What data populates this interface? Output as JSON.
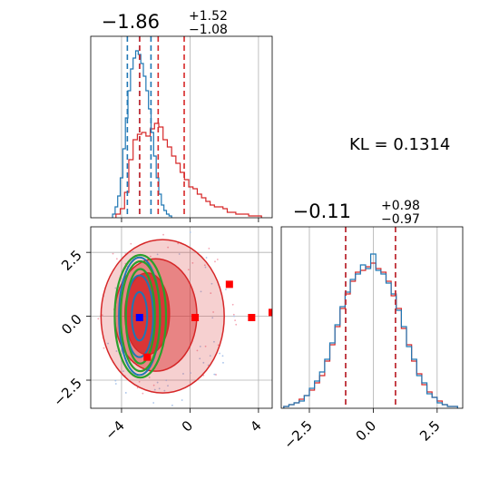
{
  "colors": {
    "red": "#d62728",
    "blue": "#1f77b4",
    "green": "#2ca02c",
    "grid": "#b0b0b0",
    "marker_blue": "#0000ff",
    "marker_red": "#ff0000"
  },
  "figure": {
    "kl_text": "KL = 0.1314"
  },
  "chart_data": [
    {
      "type": "histogram",
      "panel": "top-left",
      "title_main": "−1.86",
      "title_sup": "+1.52",
      "title_sub": "−1.08",
      "xlim": [
        -5.8,
        4.8
      ],
      "ylim": [
        0,
        1.0
      ],
      "x_ticks_shown": false,
      "red_quantiles": [
        -2.94,
        -1.86,
        -0.34
      ],
      "blue_quantiles": [
        -3.66,
        -2.95,
        -2.28
      ],
      "series": [
        {
          "name": "",
          "color": "#d62728",
          "x": [
            -4.2,
            -3.95,
            -3.7,
            -3.45,
            -3.2,
            -2.95,
            -2.7,
            -2.45,
            -2.2,
            -1.95,
            -1.7,
            -1.45,
            -1.2,
            -0.95,
            -0.7,
            -0.45,
            -0.2,
            0.05,
            0.3,
            0.55,
            0.8,
            1.05,
            1.3,
            1.55,
            1.8,
            2.05,
            2.3,
            2.55,
            2.8,
            3.05,
            3.3,
            3.55,
            3.8,
            4.05
          ],
          "values": [
            0.02,
            0.05,
            0.14,
            0.32,
            0.43,
            0.46,
            0.47,
            0.45,
            0.49,
            0.52,
            0.5,
            0.43,
            0.39,
            0.34,
            0.3,
            0.25,
            0.21,
            0.17,
            0.16,
            0.13,
            0.11,
            0.09,
            0.07,
            0.06,
            0.06,
            0.05,
            0.03,
            0.03,
            0.02,
            0.02,
            0.02,
            0.01,
            0.01,
            0.01
          ]
        },
        {
          "name": "",
          "color": "#1f77b4",
          "x": [
            -4.45,
            -4.3,
            -4.15,
            -4.0,
            -3.85,
            -3.7,
            -3.55,
            -3.4,
            -3.25,
            -3.1,
            -2.95,
            -2.8,
            -2.65,
            -2.5,
            -2.35,
            -2.2,
            -2.05,
            -1.9,
            -1.75,
            -1.6,
            -1.45,
            -1.3,
            -1.15
          ],
          "values": [
            0.02,
            0.06,
            0.12,
            0.22,
            0.38,
            0.55,
            0.7,
            0.82,
            0.88,
            0.92,
            0.9,
            0.85,
            0.78,
            0.7,
            0.6,
            0.47,
            0.34,
            0.22,
            0.13,
            0.07,
            0.04,
            0.02,
            0.01
          ]
        }
      ]
    },
    {
      "type": "contour-scatter",
      "panel": "bottom-left",
      "xlim": [
        -5.8,
        4.8
      ],
      "ylim": [
        -3.6,
        3.5
      ],
      "x_ticks": [
        -4,
        0,
        4
      ],
      "x_tick_labels": [
        "−4",
        "0",
        "4"
      ],
      "y_ticks": [
        2.5,
        0,
        -2.5
      ],
      "y_tick_labels": [
        "2.5",
        "0.0",
        "−2.5"
      ],
      "red_contours": [
        {
          "level": "outer",
          "cx": -1.6,
          "cy": 0.0,
          "rx": 3.6,
          "ry": 3.0,
          "opacity": 0.22
        },
        {
          "level": "mid",
          "cx": -2.0,
          "cy": 0.05,
          "rx": 2.4,
          "ry": 2.2,
          "opacity": 0.45
        },
        {
          "level": "inner",
          "cx": -2.5,
          "cy": 0.1,
          "rx": 1.3,
          "ry": 1.6,
          "opacity": 0.85
        }
      ],
      "blue_contours": [
        {
          "cx": -2.95,
          "cy": 0.0,
          "rx": 1.2,
          "ry": 2.3
        },
        {
          "cx": -2.95,
          "cy": 0.0,
          "rx": 0.8,
          "ry": 1.6
        },
        {
          "cx": -2.95,
          "cy": 0.0,
          "rx": 0.45,
          "ry": 0.95
        }
      ],
      "green_ellipses": [
        {
          "cx": -2.9,
          "cy": 0.0,
          "rx": 1.5,
          "ry": 2.4
        },
        {
          "cx": -2.9,
          "cy": 0.0,
          "rx": 1.15,
          "ry": 2.15
        },
        {
          "cx": -2.9,
          "cy": 0.0,
          "rx": 0.85,
          "ry": 1.85
        }
      ],
      "red_markers": [
        {
          "x": 2.3,
          "y": 1.25
        },
        {
          "x": 0.3,
          "y": -0.05
        },
        {
          "x": 3.6,
          "y": -0.05
        },
        {
          "x": 4.8,
          "y": 0.15
        },
        {
          "x": -2.5,
          "y": -1.6
        }
      ],
      "blue_marker": {
        "x": -2.95,
        "y": -0.05
      }
    },
    {
      "type": "histogram",
      "panel": "bottom-right",
      "title_main": "−0.11",
      "title_sup": "+0.98",
      "title_sub": "−0.97",
      "xlim": [
        -3.6,
        3.5
      ],
      "ylim": [
        0,
        1.0
      ],
      "x_ticks": [
        -2.5,
        0,
        2.5
      ],
      "x_tick_labels": [
        "−2.5",
        "0.0",
        "2.5"
      ],
      "red_quantiles": [
        -1.08,
        0.87
      ],
      "blue_quantiles": [
        -1.08,
        0.87
      ],
      "series": [
        {
          "name": "",
          "color": "#d62728",
          "x": [
            -3.4,
            -3.2,
            -3.0,
            -2.8,
            -2.6,
            -2.4,
            -2.2,
            -2.0,
            -1.8,
            -1.6,
            -1.4,
            -1.2,
            -1.0,
            -0.8,
            -0.6,
            -0.4,
            -0.2,
            0.0,
            0.2,
            0.4,
            0.6,
            0.8,
            1.0,
            1.2,
            1.4,
            1.6,
            1.8,
            2.0,
            2.2,
            2.4,
            2.6,
            2.8,
            3.0,
            3.2
          ],
          "values": [
            0.01,
            0.02,
            0.03,
            0.05,
            0.07,
            0.1,
            0.14,
            0.18,
            0.26,
            0.35,
            0.45,
            0.55,
            0.63,
            0.7,
            0.75,
            0.76,
            0.78,
            0.8,
            0.77,
            0.75,
            0.7,
            0.62,
            0.55,
            0.44,
            0.35,
            0.26,
            0.19,
            0.13,
            0.09,
            0.06,
            0.04,
            0.02,
            0.01,
            0.01
          ]
        },
        {
          "name": "",
          "color": "#1f77b4",
          "x": [
            -3.4,
            -3.2,
            -3.0,
            -2.8,
            -2.6,
            -2.4,
            -2.2,
            -2.0,
            -1.8,
            -1.6,
            -1.4,
            -1.2,
            -1.0,
            -0.8,
            -0.6,
            -0.4,
            -0.2,
            0.0,
            0.2,
            0.4,
            0.6,
            0.8,
            1.0,
            1.2,
            1.4,
            1.6,
            1.8,
            2.0,
            2.2,
            2.4,
            2.6,
            2.8,
            3.0,
            3.2
          ],
          "values": [
            0.01,
            0.02,
            0.03,
            0.04,
            0.07,
            0.11,
            0.15,
            0.2,
            0.27,
            0.36,
            0.46,
            0.56,
            0.64,
            0.71,
            0.74,
            0.79,
            0.77,
            0.85,
            0.76,
            0.74,
            0.69,
            0.63,
            0.54,
            0.45,
            0.34,
            0.27,
            0.18,
            0.14,
            0.08,
            0.06,
            0.03,
            0.02,
            0.01,
            0.01
          ]
        }
      ]
    }
  ]
}
